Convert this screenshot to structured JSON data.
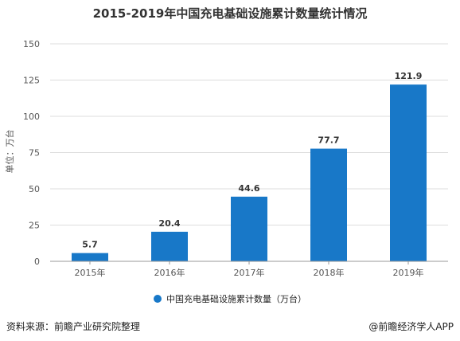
{
  "chart_data": {
    "type": "bar",
    "title": "2015-2019年中国充电基础设施累计数量统计情况",
    "ylabel": "单位：万台",
    "xlabel": "",
    "categories": [
      "2015年",
      "2016年",
      "2017年",
      "2018年",
      "2019年"
    ],
    "series": [
      {
        "name": "中国充电基础设施累计数量（万台）",
        "values": [
          5.7,
          20.4,
          44.6,
          77.7,
          121.9
        ]
      }
    ],
    "data_labels": [
      "5.7",
      "20.4",
      "44.6",
      "77.7",
      "121.9"
    ],
    "ylim": [
      0,
      150
    ],
    "yticks": [
      0,
      25,
      50,
      75,
      100,
      125,
      150
    ],
    "grid": true,
    "legend_position": "bottom",
    "bar_color": "#1878c8"
  },
  "footer": {
    "source": "资料来源：前瞻产业研究院整理",
    "credit": "@前瞻经济学人APP"
  }
}
